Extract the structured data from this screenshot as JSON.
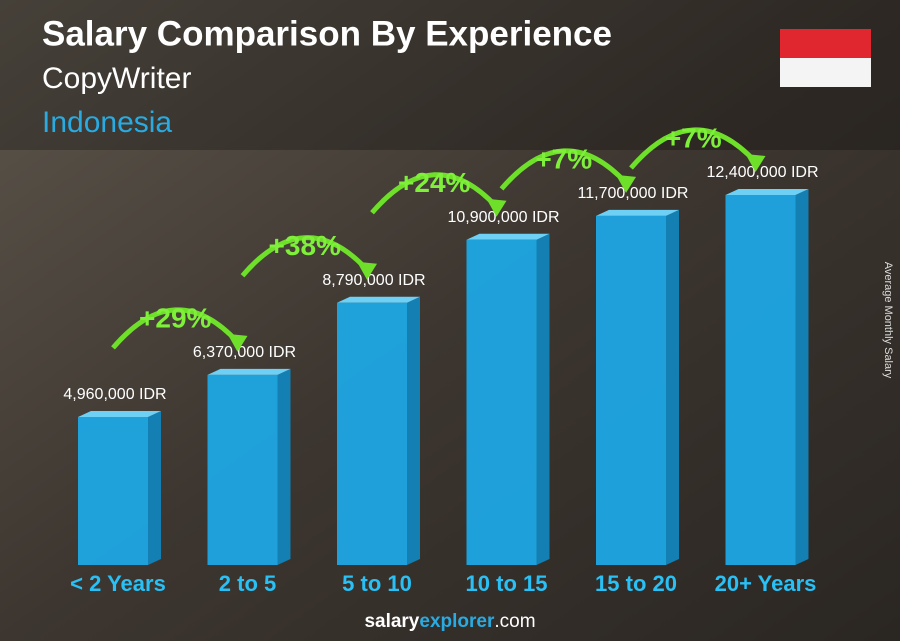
{
  "chart_data": {
    "type": "bar3d",
    "title": "Salary Comparison By Experience",
    "subtitle": "CopyWriter",
    "location": "Indonesia",
    "y_label": "Average Monthly Salary",
    "categories": [
      "< 2 Years",
      "2 to 5",
      "5 to 10",
      "10 to 15",
      "15 to 20",
      "20+ Years"
    ],
    "values": [
      4960000,
      6370000,
      8790000,
      10900000,
      11700000,
      12400000
    ],
    "value_labels": [
      "4,960,000 IDR",
      "6,370,000 IDR",
      "8,790,000 IDR",
      "10,900,000 IDR",
      "11,700,000 IDR",
      "12,400,000 IDR"
    ],
    "changes": [
      "+29%",
      "+38%",
      "+24%",
      "+7%",
      "+7%"
    ],
    "color": "#1ea7e4",
    "source": [
      "salary",
      "explorer",
      ".com"
    ]
  }
}
